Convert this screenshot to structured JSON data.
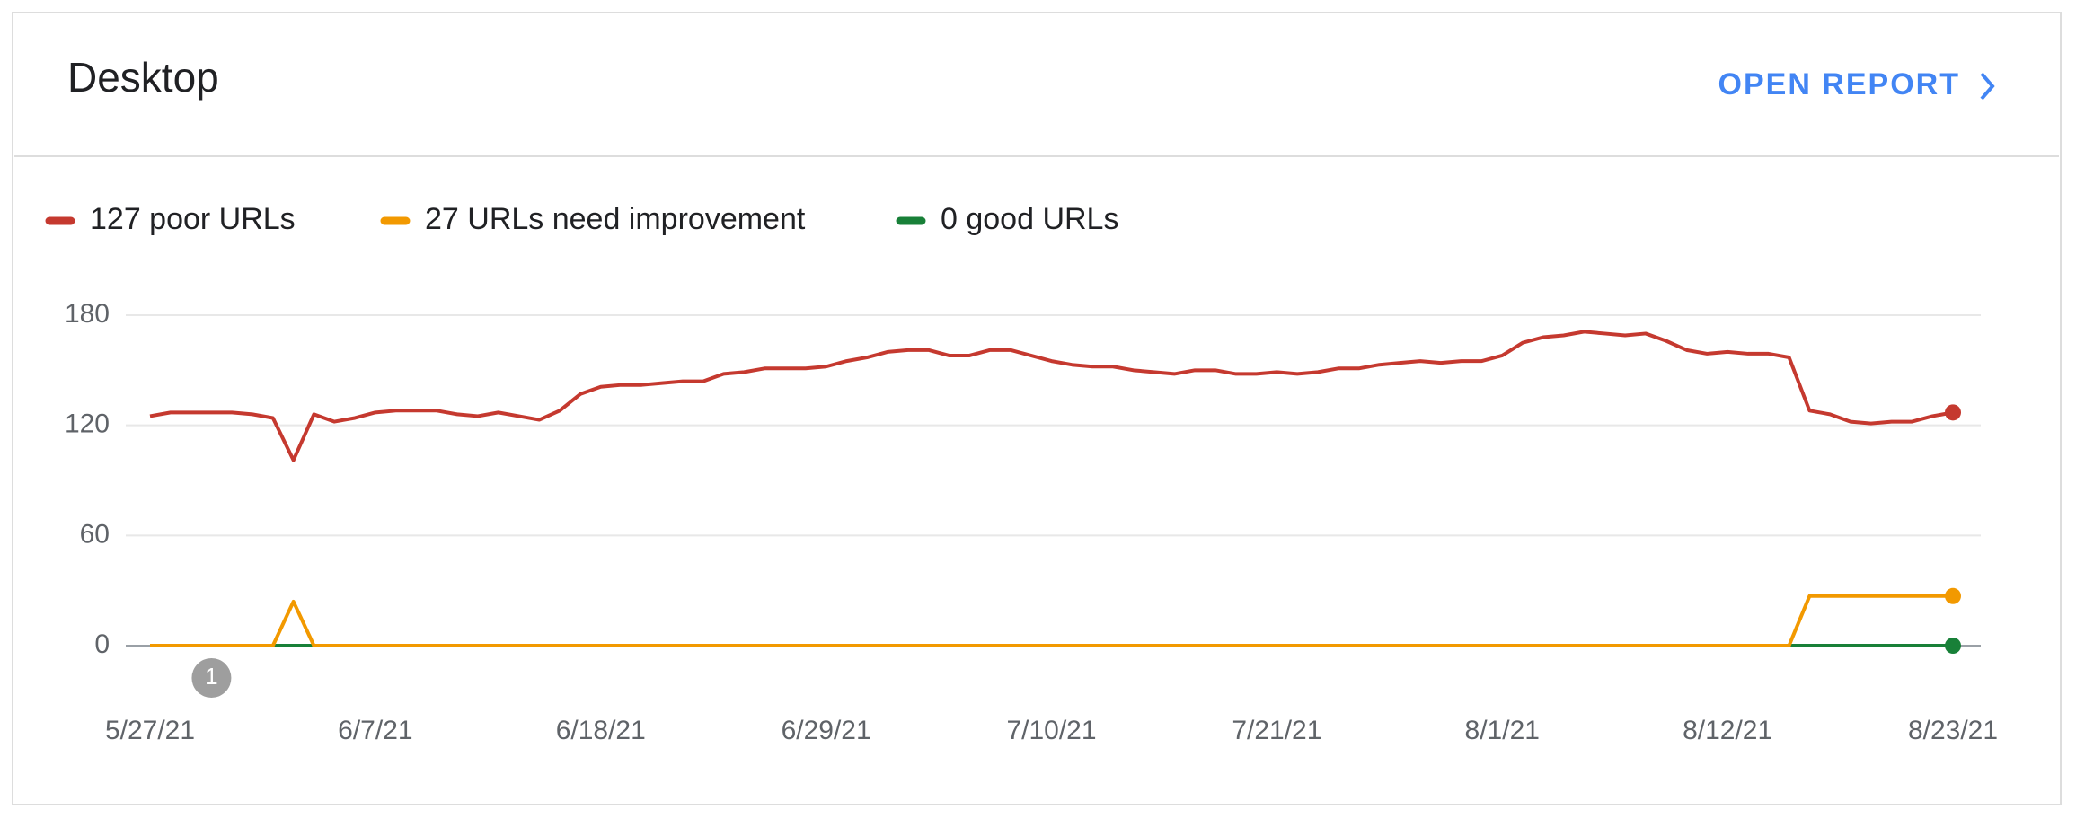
{
  "header": {
    "title": "Desktop",
    "action": "OPEN REPORT"
  },
  "chart_data": {
    "type": "line",
    "categories": [
      "5/27/21",
      "5/28/21",
      "5/29/21",
      "5/30/21",
      "5/31/21",
      "6/1/21",
      "6/2/21",
      "6/3/21",
      "6/4/21",
      "6/5/21",
      "6/6/21",
      "6/7/21",
      "6/8/21",
      "6/9/21",
      "6/10/21",
      "6/11/21",
      "6/12/21",
      "6/13/21",
      "6/14/21",
      "6/15/21",
      "6/16/21",
      "6/17/21",
      "6/18/21",
      "6/19/21",
      "6/20/21",
      "6/21/21",
      "6/22/21",
      "6/23/21",
      "6/24/21",
      "6/25/21",
      "6/26/21",
      "6/27/21",
      "6/28/21",
      "6/29/21",
      "6/30/21",
      "7/1/21",
      "7/2/21",
      "7/3/21",
      "7/4/21",
      "7/5/21",
      "7/6/21",
      "7/7/21",
      "7/8/21",
      "7/9/21",
      "7/10/21",
      "7/11/21",
      "7/12/21",
      "7/13/21",
      "7/14/21",
      "7/15/21",
      "7/16/21",
      "7/17/21",
      "7/18/21",
      "7/19/21",
      "7/20/21",
      "7/21/21",
      "7/22/21",
      "7/23/21",
      "7/24/21",
      "7/25/21",
      "7/26/21",
      "7/27/21",
      "7/28/21",
      "7/29/21",
      "7/30/21",
      "7/31/21",
      "8/1/21",
      "8/2/21",
      "8/3/21",
      "8/4/21",
      "8/5/21",
      "8/6/21",
      "8/7/21",
      "8/8/21",
      "8/9/21",
      "8/10/21",
      "8/11/21",
      "8/12/21",
      "8/13/21",
      "8/14/21",
      "8/15/21",
      "8/16/21",
      "8/17/21",
      "8/18/21",
      "8/19/21",
      "8/20/21",
      "8/21/21",
      "8/22/21",
      "8/23/21"
    ],
    "xticks": [
      "5/27/21",
      "6/7/21",
      "6/18/21",
      "6/29/21",
      "7/10/21",
      "7/21/21",
      "8/1/21",
      "8/12/21",
      "8/23/21"
    ],
    "series": [
      {
        "name": "127 poor URLs",
        "color": "#c5392f",
        "values": [
          125,
          127,
          127,
          127,
          127,
          126,
          124,
          101,
          126,
          122,
          124,
          127,
          128,
          128,
          128,
          126,
          125,
          127,
          125,
          123,
          128,
          137,
          141,
          142,
          142,
          143,
          144,
          144,
          148,
          149,
          151,
          151,
          151,
          152,
          155,
          157,
          160,
          161,
          161,
          158,
          158,
          161,
          161,
          158,
          155,
          153,
          152,
          152,
          150,
          149,
          148,
          150,
          150,
          148,
          148,
          149,
          148,
          149,
          151,
          151,
          153,
          154,
          155,
          154,
          155,
          155,
          158,
          165,
          168,
          169,
          171,
          170,
          169,
          170,
          166,
          161,
          159,
          160,
          159,
          159,
          157,
          128,
          126,
          122,
          121,
          122,
          122,
          125,
          127
        ]
      },
      {
        "name": "27 URLs need improvement",
        "color": "#f29900",
        "values": [
          0,
          0,
          0,
          0,
          0,
          0,
          0,
          24,
          0,
          0,
          0,
          0,
          0,
          0,
          0,
          0,
          0,
          0,
          0,
          0,
          0,
          0,
          0,
          0,
          0,
          0,
          0,
          0,
          0,
          0,
          0,
          0,
          0,
          0,
          0,
          0,
          0,
          0,
          0,
          0,
          0,
          0,
          0,
          0,
          0,
          0,
          0,
          0,
          0,
          0,
          0,
          0,
          0,
          0,
          0,
          0,
          0,
          0,
          0,
          0,
          0,
          0,
          0,
          0,
          0,
          0,
          0,
          0,
          0,
          0,
          0,
          0,
          0,
          0,
          0,
          0,
          0,
          0,
          0,
          0,
          0,
          27,
          27,
          27,
          27,
          27,
          27,
          27,
          27
        ]
      },
      {
        "name": "0 good URLs",
        "color": "#188038",
        "values": [
          0,
          0,
          0,
          0,
          0,
          0,
          0,
          0,
          0,
          0,
          0,
          0,
          0,
          0,
          0,
          0,
          0,
          0,
          0,
          0,
          0,
          0,
          0,
          0,
          0,
          0,
          0,
          0,
          0,
          0,
          0,
          0,
          0,
          0,
          0,
          0,
          0,
          0,
          0,
          0,
          0,
          0,
          0,
          0,
          0,
          0,
          0,
          0,
          0,
          0,
          0,
          0,
          0,
          0,
          0,
          0,
          0,
          0,
          0,
          0,
          0,
          0,
          0,
          0,
          0,
          0,
          0,
          0,
          0,
          0,
          0,
          0,
          0,
          0,
          0,
          0,
          0,
          0,
          0,
          0,
          0,
          0,
          0,
          0,
          0,
          0,
          0,
          0,
          0
        ]
      }
    ],
    "ylim": [
      0,
      180
    ],
    "yticks": [
      0,
      60,
      120,
      180
    ],
    "grid": true,
    "annotations": [
      {
        "text": "1"
      }
    ]
  }
}
